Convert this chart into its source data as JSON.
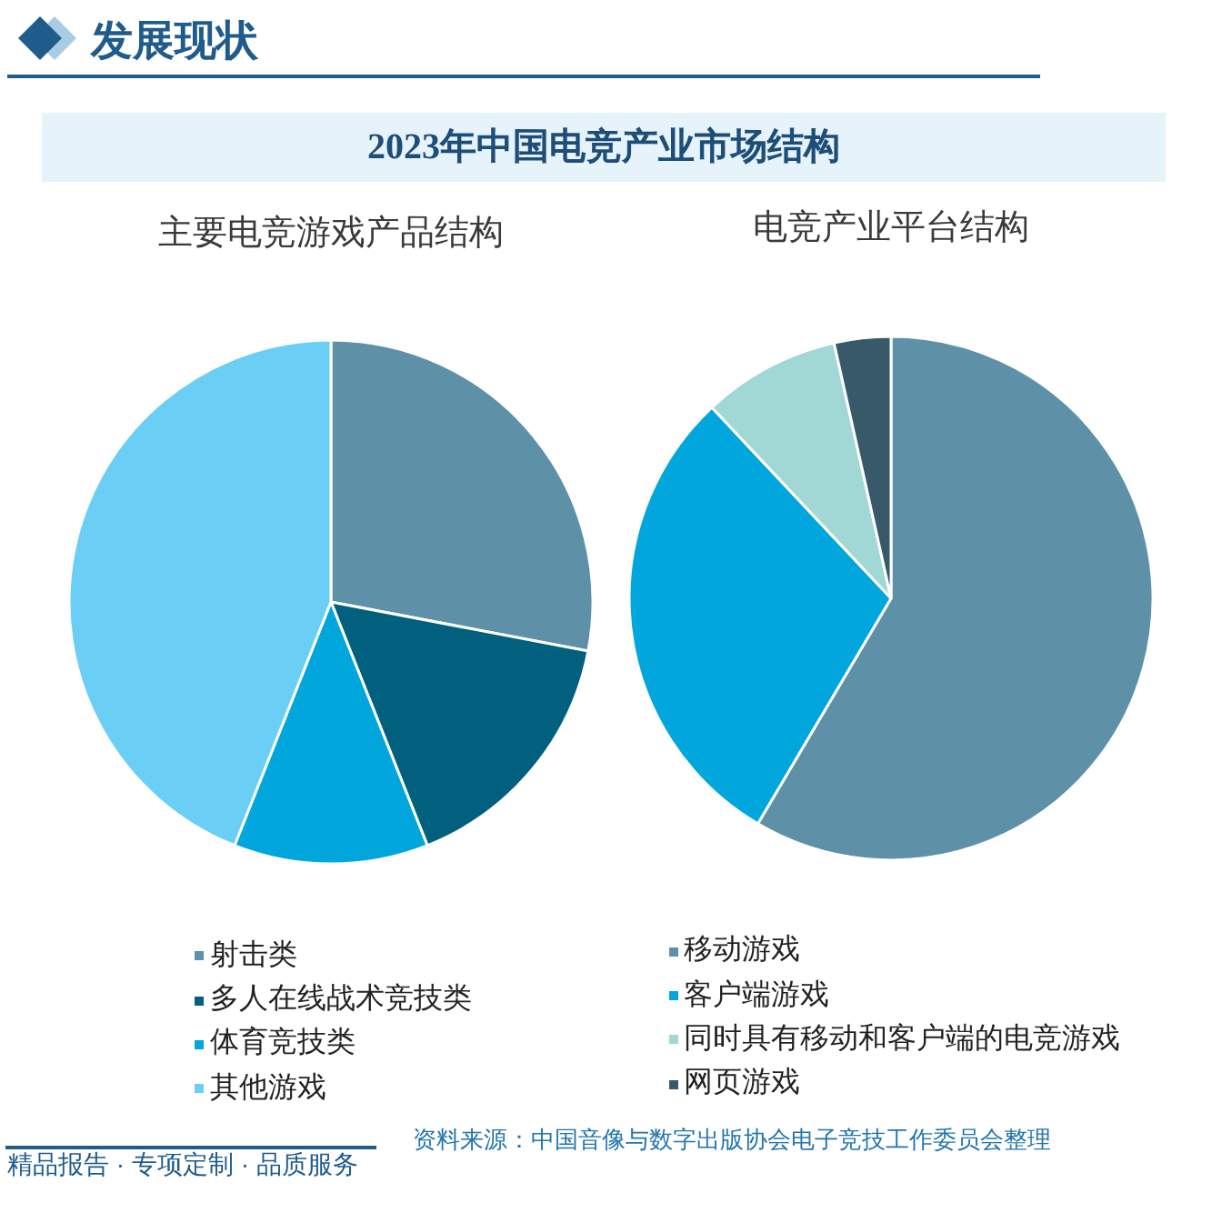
{
  "chart_data": [
    {
      "type": "pie",
      "title": "主要电竞游戏产品结构",
      "categories": [
        "射击类",
        "多人在线战术竞技类",
        "体育竞技类",
        "其他游戏"
      ],
      "values": [
        28,
        16,
        12,
        44
      ],
      "colors": [
        "#5e91a8",
        "#02607f",
        "#00a6dc",
        "#6bcff5"
      ],
      "legend": "bottom",
      "annotations": [
        "发展现状",
        "2023年中国电竞产业市场结构"
      ]
    },
    {
      "type": "pie",
      "title": "电竞产业平台结构",
      "categories": [
        "移动游戏",
        "客户端游戏",
        "同时具有移动和客户端的电竞游戏",
        "网页游戏"
      ],
      "values": [
        58.5,
        29.5,
        8.5,
        3.5
      ],
      "colors": [
        "#5e91a8",
        "#00a6dc",
        "#a1d8d6",
        "#37596a"
      ],
      "legend": "bottom",
      "annotations": [
        "资料来源：中国音像与数字出版协会电子竞技工作委员会整理",
        "精品报告 · 专项定制 · 品质服务"
      ]
    }
  ]
}
